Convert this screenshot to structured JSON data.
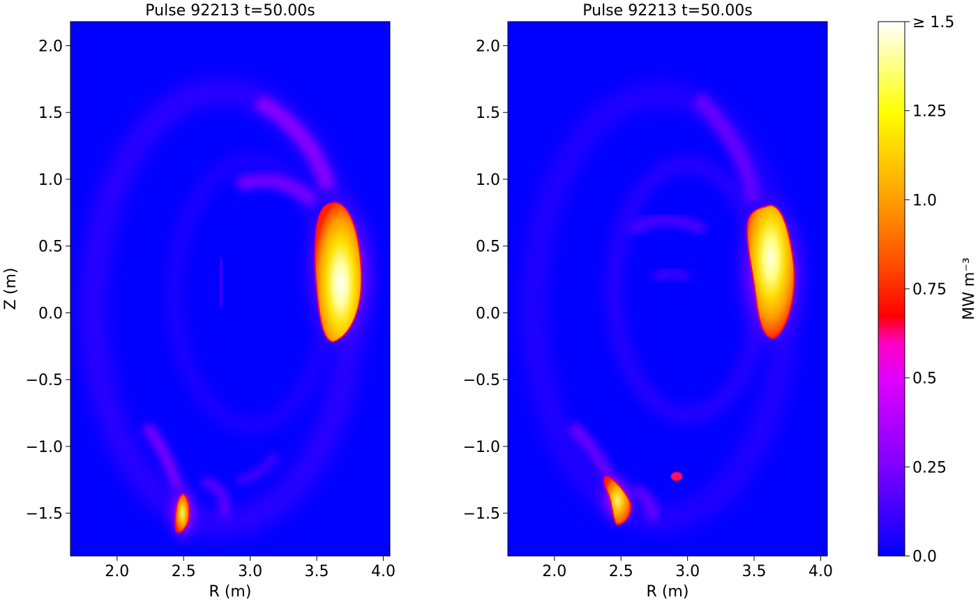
{
  "figure": {
    "panels": [
      {
        "title": "Pulse 92213 t=50.00s",
        "xlabel": "R (m)",
        "ylabel": "Z (m)"
      },
      {
        "title": "Pulse 92213 t=50.00s",
        "xlabel": "R (m)",
        "ylabel": ""
      }
    ],
    "colorbar": {
      "label": "MW m⁻³",
      "ticks": [
        "0.0",
        "0.25",
        "0.5",
        "0.75",
        "1.0",
        "1.25",
        "≥ 1.5"
      ]
    }
  },
  "chart_data": [
    {
      "type": "heatmap",
      "title": "Pulse 92213 t=50.00s",
      "xlabel": "R (m)",
      "ylabel": "Z (m)",
      "xlim": [
        1.65,
        4.05
      ],
      "ylim": [
        -1.82,
        2.18
      ],
      "xticks": [
        2.0,
        2.5,
        3.0,
        3.5,
        4.0
      ],
      "yticks": [
        -1.5,
        -1.0,
        -0.5,
        0.0,
        0.5,
        1.0,
        1.5,
        2.0
      ],
      "colormap": "gnuplot2-like (blue→purple→magenta→red→orange→yellow→white)",
      "vmin": 0.0,
      "vmax": 1.5,
      "features": [
        {
          "R": 3.67,
          "Z": 0.3,
          "peak": 1.5,
          "description": "outboard emission blob"
        },
        {
          "R": 2.5,
          "Z": -1.47,
          "peak": 1.2,
          "description": "inner divertor leg"
        },
        {
          "R": 3.1,
          "Z": 1.2,
          "peak": 0.35,
          "description": "upper faint arc"
        },
        {
          "R": 2.0,
          "Z": 0.2,
          "peak": 0.12,
          "description": "inboard faint arc"
        },
        {
          "R": 2.95,
          "Z": -1.35,
          "peak": 0.3,
          "description": "lower legs"
        }
      ]
    },
    {
      "type": "heatmap",
      "title": "Pulse 92213 t=50.00s",
      "xlabel": "R (m)",
      "ylabel": "",
      "xlim": [
        1.65,
        4.05
      ],
      "ylim": [
        -1.82,
        2.18
      ],
      "xticks": [
        2.0,
        2.5,
        3.0,
        3.5,
        4.0
      ],
      "yticks": [
        -1.5,
        -1.0,
        -0.5,
        0.0,
        0.5,
        1.0,
        1.5,
        2.0
      ],
      "colormap": "gnuplot2-like (blue→purple→magenta→red→orange→yellow→white)",
      "vmin": 0.0,
      "vmax": 1.5,
      "features": [
        {
          "R": 3.63,
          "Z": 0.35,
          "peak": 1.45,
          "description": "outboard emission blob"
        },
        {
          "R": 2.47,
          "Z": -1.38,
          "peak": 1.2,
          "description": "inner divertor leg"
        },
        {
          "R": 2.93,
          "Z": -1.22,
          "peak": 0.7,
          "description": "small hot spot"
        },
        {
          "R": 3.1,
          "Z": 1.3,
          "peak": 0.3,
          "description": "upper faint arc"
        },
        {
          "R": 2.75,
          "Z": 0.3,
          "peak": 0.2,
          "description": "inner ring"
        }
      ]
    }
  ]
}
